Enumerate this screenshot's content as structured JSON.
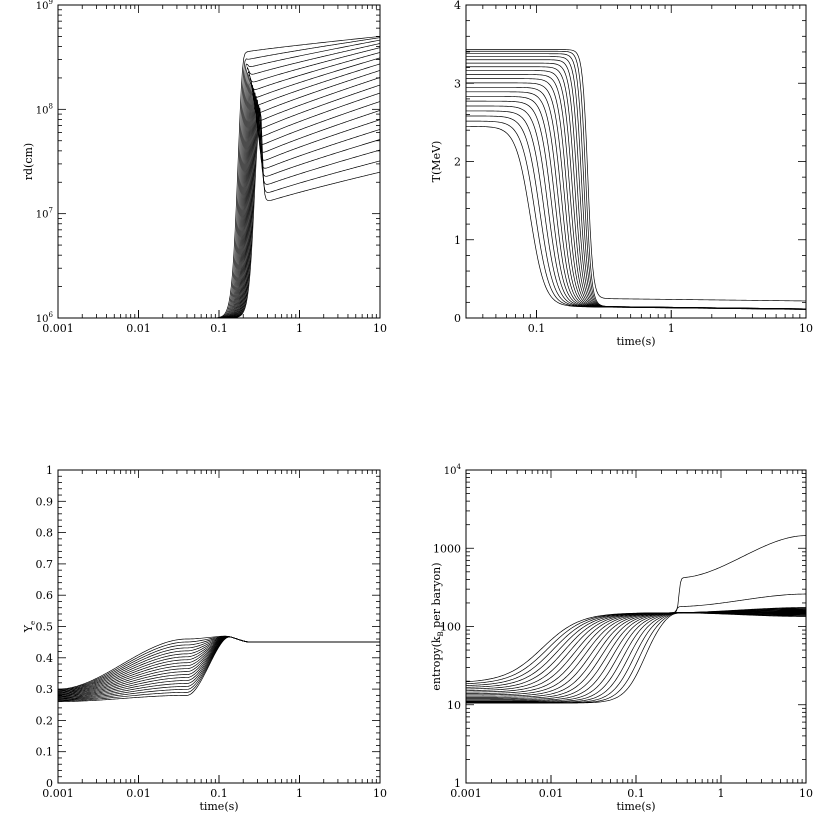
{
  "chart_data": [
    {
      "id": "rd",
      "type": "line",
      "xscale": "log",
      "yscale": "log",
      "xlim": [
        0.001,
        10
      ],
      "ylim": [
        1000000,
        1000000000
      ],
      "xlabel": "",
      "ylabel": "rd(cm)",
      "xticks": [
        {
          "v": 0.001,
          "label": "0.001"
        },
        {
          "v": 0.01,
          "label": "0.01"
        },
        {
          "v": 0.1,
          "label": "0.1"
        },
        {
          "v": 1,
          "label": "1"
        },
        {
          "v": 10,
          "label": "10"
        }
      ],
      "yticks": [
        {
          "v": 1000000,
          "base": "10",
          "exp": "6"
        },
        {
          "v": 10000000,
          "base": "10",
          "exp": "7"
        },
        {
          "v": 100000000,
          "base": "10",
          "exp": "8"
        },
        {
          "v": 1000000000,
          "base": "10",
          "exp": "9"
        }
      ],
      "family": {
        "count": 20,
        "x_start": 0.001,
        "y_start": 1000000,
        "rise_time_range": [
          0.17,
          0.28
        ],
        "peak_y": 400000000,
        "final_y_range": [
          25000000,
          500000000
        ]
      }
    },
    {
      "id": "T",
      "type": "line",
      "xscale": "log",
      "yscale": "linear",
      "xlim": [
        0.03,
        10
      ],
      "ylim": [
        0,
        4
      ],
      "xlabel": "time(s)",
      "ylabel": "T(MeV)",
      "xticks": [
        {
          "v": 0.1,
          "label": "0.1"
        },
        {
          "v": 1,
          "label": "1"
        },
        {
          "v": 10,
          "label": "10"
        }
      ],
      "yticks": [
        {
          "v": 0,
          "label": "0"
        },
        {
          "v": 1,
          "label": "1"
        },
        {
          "v": 2,
          "label": "2"
        },
        {
          "v": 3,
          "label": "3"
        },
        {
          "v": 4,
          "label": "4"
        }
      ],
      "family": {
        "count": 20,
        "initial_T_range": [
          2.45,
          3.43
        ],
        "drop_time_range": [
          0.09,
          0.24
        ],
        "final_T": 0.15,
        "final_T_hot_curve": 0.25
      }
    },
    {
      "id": "Ye",
      "type": "line",
      "xscale": "log",
      "yscale": "linear",
      "xlim": [
        0.001,
        10
      ],
      "ylim": [
        0,
        1
      ],
      "xlabel": "time(s)",
      "ylabel_base": "Y",
      "ylabel_sub": "e",
      "xticks": [
        {
          "v": 0.001,
          "label": "0.001"
        },
        {
          "v": 0.01,
          "label": "0.01"
        },
        {
          "v": 0.1,
          "label": "0.1"
        },
        {
          "v": 1,
          "label": "1"
        },
        {
          "v": 10,
          "label": "10"
        }
      ],
      "yticks": [
        {
          "v": 0,
          "label": "0"
        },
        {
          "v": 0.1,
          "label": "0.1"
        },
        {
          "v": 0.2,
          "label": "0.2"
        },
        {
          "v": 0.3,
          "label": "0.3"
        },
        {
          "v": 0.4,
          "label": "0.4"
        },
        {
          "v": 0.5,
          "label": "0.5"
        },
        {
          "v": 0.6,
          "label": "0.6"
        },
        {
          "v": 0.7,
          "label": "0.7"
        },
        {
          "v": 0.8,
          "label": "0.8"
        },
        {
          "v": 0.9,
          "label": "0.9"
        },
        {
          "v": 1,
          "label": "1"
        }
      ],
      "family": {
        "count": 20,
        "initial_Ye_range": [
          0.26,
          0.3
        ],
        "mid_Ye_range": [
          0.28,
          0.46
        ],
        "peak_Ye": 0.47,
        "final_Ye": 0.45
      }
    },
    {
      "id": "S",
      "type": "line",
      "xscale": "log",
      "yscale": "log",
      "xlim": [
        0.001,
        10
      ],
      "ylim": [
        1,
        10000
      ],
      "xlabel": "time(s)",
      "ylabel_pre": "entropy(k",
      "ylabel_sub": "B",
      "ylabel_post": " per baryon)",
      "xticks": [
        {
          "v": 0.001,
          "label": "0.001"
        },
        {
          "v": 0.01,
          "label": "0.01"
        },
        {
          "v": 0.1,
          "label": "0.1"
        },
        {
          "v": 1,
          "label": "1"
        },
        {
          "v": 10,
          "label": "10"
        }
      ],
      "yticks": [
        {
          "v": 1,
          "label": "1"
        },
        {
          "v": 10,
          "label": "10"
        },
        {
          "v": 100,
          "label": "100"
        },
        {
          "v": 1000,
          "label": "1000"
        },
        {
          "v": 10000,
          "base": "10",
          "exp": "4"
        }
      ],
      "family": {
        "count": 20,
        "initial_S_range": [
          10.5,
          19
        ],
        "plateau_S": 150,
        "final_S_range": [
          130,
          175
        ],
        "outliers": [
          {
            "jump_time": 0.32,
            "level": 420,
            "final": 1450
          },
          {
            "jump_time": 0.3,
            "level": 180,
            "final": 260
          }
        ]
      }
    }
  ]
}
